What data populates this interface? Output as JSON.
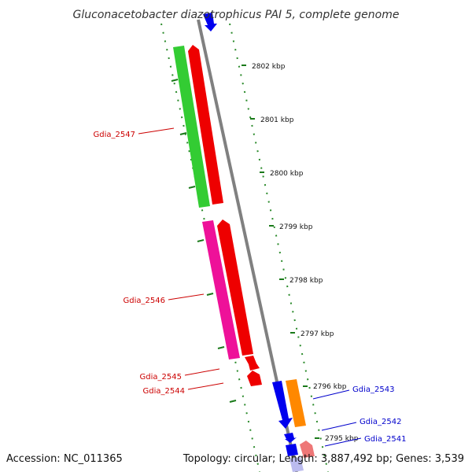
{
  "title": "Gluconacetobacter diazotrophicus PAI 5, complete genome",
  "footer": {
    "accession": "Accession: NC_011365",
    "topology": "Topology: circular; Length: 3,887,492 bp; Genes: 3,539"
  },
  "colors": {
    "backbone": "#808080",
    "tick": "#1a7a1a",
    "label_red": "#cc0000",
    "label_blue": "#0000cc",
    "gene_green": "#33cc33",
    "gene_red": "#ee0000",
    "gene_magenta": "#ee1199",
    "gene_blue": "#0000ee",
    "gene_orange": "#ff8800",
    "gene_pink": "#ee7777",
    "gene_lavender": "#bbbbee"
  },
  "ticks": [
    {
      "label": "2802 kbp"
    },
    {
      "label": "2801 kbp"
    },
    {
      "label": "2800 kbp"
    },
    {
      "label": "2799 kbp"
    },
    {
      "label": "2798 kbp"
    },
    {
      "label": "2797 kbp"
    },
    {
      "label": "2796 kbp"
    },
    {
      "label": "2795 kbp"
    }
  ],
  "gene_labels": [
    {
      "text": "Gdia_2547",
      "side": "left"
    },
    {
      "text": "Gdia_2546",
      "side": "left"
    },
    {
      "text": "Gdia_2545",
      "side": "left"
    },
    {
      "text": "Gdia_2544",
      "side": "left"
    },
    {
      "text": "Gdia_2543",
      "side": "right"
    },
    {
      "text": "Gdia_2542",
      "side": "right"
    },
    {
      "text": "Gdia_2541",
      "side": "right"
    }
  ]
}
